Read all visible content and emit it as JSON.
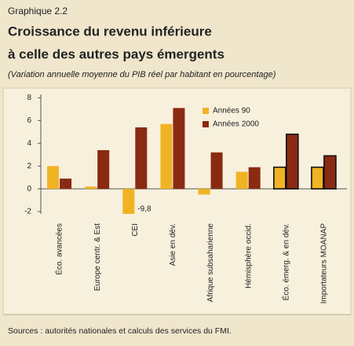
{
  "chart_data": {
    "type": "bar",
    "label": "Graphique 2.2",
    "title": [
      "Croissance du revenu inférieure",
      "à celle des autres pays émergents"
    ],
    "subtitle": "(Variation annuelle moyenne du PIB réel par habitant en pourcentage)",
    "source": "Sources : autorités nationales et calculs des services du FMI.",
    "categories": [
      "Éco. avancées",
      "Europe centr. & Est",
      "CEI",
      "Asie en dév.",
      "Afrique subsaharienne",
      "Hémisphère occid.",
      "Éco. émerg. & en dév.",
      "Importateurs MOANAP"
    ],
    "series": [
      {
        "name": "Années 90",
        "color": "#f0b323",
        "values": [
          2.0,
          0.2,
          -9.8,
          5.7,
          -0.5,
          1.5,
          1.9,
          1.9
        ],
        "value_labels": [
          null,
          null,
          "-9,8",
          null,
          null,
          null,
          null,
          null
        ]
      },
      {
        "name": "Années 2000",
        "color": "#8a2a12",
        "values": [
          0.9,
          3.4,
          5.4,
          7.1,
          3.2,
          1.9,
          4.8,
          2.9
        ]
      }
    ],
    "ylim": [
      -2.2,
      8.3
    ],
    "yticks": [
      -2,
      0,
      2,
      4,
      6,
      8
    ],
    "legend": "upper right"
  }
}
